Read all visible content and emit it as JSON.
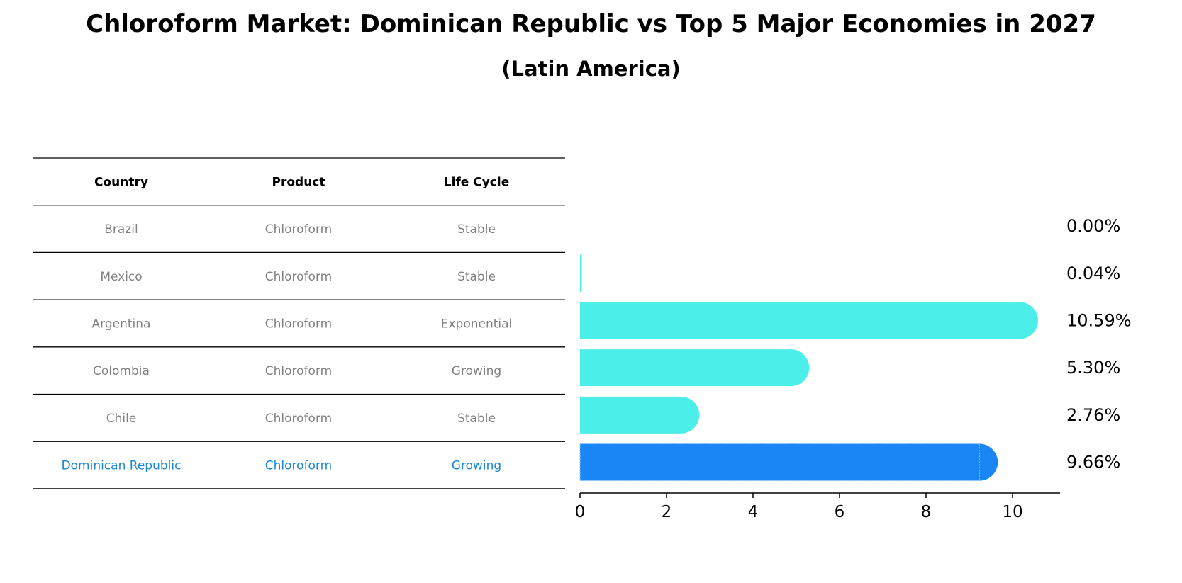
{
  "title": "Chloroform Market: Dominican Republic vs Top 5 Major Economies in 2027",
  "subtitle": "(Latin America)",
  "table": {
    "headers": [
      "Country",
      "Product",
      "Life Cycle"
    ],
    "rows": [
      {
        "country": "Brazil",
        "product": "Chloroform",
        "life_cycle": "Stable"
      },
      {
        "country": "Mexico",
        "product": "Chloroform",
        "life_cycle": "Stable"
      },
      {
        "country": "Argentina",
        "product": "Chloroform",
        "life_cycle": "Exponential"
      },
      {
        "country": "Colombia",
        "product": "Chloroform",
        "life_cycle": "Growing"
      },
      {
        "country": "Chile",
        "product": "Chloroform",
        "life_cycle": "Stable"
      },
      {
        "country": "Dominican Republic",
        "product": "Chloroform",
        "life_cycle": "Growing"
      }
    ],
    "highlight_row": 5
  },
  "chart_data": {
    "type": "bar",
    "orientation": "horizontal",
    "title": "Chloroform Market: Dominican Republic vs Top 5 Major Economies in 2027",
    "subtitle": "(Latin America)",
    "categories": [
      "Brazil",
      "Mexico",
      "Argentina",
      "Colombia",
      "Chile",
      "Dominican Republic"
    ],
    "values": [
      0.0,
      0.04,
      10.59,
      5.3,
      2.76,
      9.66
    ],
    "value_labels": [
      "0.00%",
      "0.04%",
      "10.59%",
      "5.30%",
      "2.76%",
      "9.66%"
    ],
    "xlim": [
      0,
      11.1
    ],
    "xticks": [
      0,
      2,
      4,
      6,
      8,
      10
    ],
    "xlabel": "",
    "ylabel": "",
    "grid": false,
    "legend": "none",
    "highlight_category": "Dominican Republic"
  },
  "colors": {
    "bar": "#4ceeea",
    "highlight_bar": "#1a86f5",
    "highlight_text": "#1a86d6",
    "cell_text": "#808080",
    "rule": "#000000"
  }
}
